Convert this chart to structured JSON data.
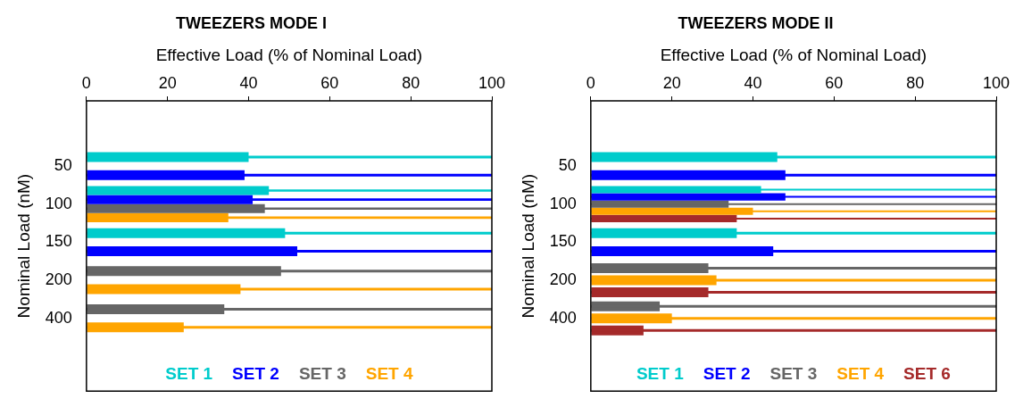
{
  "chart_data": [
    {
      "type": "bar",
      "orientation": "horizontal",
      "title": "TWEEZERS MODE I",
      "xlabel": "Effective Load (% of Nominal Load)",
      "ylabel": "Nominal Load (nM)",
      "categories": [
        "50",
        "100",
        "150",
        "200",
        "400"
      ],
      "xlim": [
        0,
        100
      ],
      "xticks": [
        0,
        20,
        40,
        60,
        80,
        100
      ],
      "grid": false,
      "legend": "bottom",
      "series": [
        {
          "name": "SET 1",
          "color": "#00cccc",
          "values": [
            40,
            45,
            49,
            null,
            null
          ]
        },
        {
          "color": "#00cccc",
          "values": [
            100,
            100,
            100,
            null,
            null
          ]
        },
        {
          "name": "SET 2",
          "color": "#0000ff",
          "values": [
            39,
            41,
            52,
            null,
            null
          ]
        },
        {
          "color": "#0000ff",
          "values": [
            100,
            100,
            100,
            null,
            null
          ]
        },
        {
          "name": "SET 3",
          "color": "#666666",
          "values": [
            null,
            44,
            null,
            48,
            34
          ]
        },
        {
          "color": "#666666",
          "values": [
            null,
            100,
            null,
            100,
            100
          ]
        },
        {
          "name": "SET 4",
          "color": "#ffa500",
          "values": [
            null,
            35,
            null,
            38,
            24
          ]
        },
        {
          "color": "#ffa500",
          "values": [
            null,
            100,
            null,
            100,
            100
          ]
        }
      ]
    },
    {
      "type": "bar",
      "orientation": "horizontal",
      "title": "TWEEZERS MODE II",
      "xlabel": "Effective Load (% of Nominal Load)",
      "ylabel": "Nominal Load (nM)",
      "categories": [
        "50",
        "100",
        "150",
        "200",
        "400"
      ],
      "xlim": [
        0,
        100
      ],
      "xticks": [
        0,
        20,
        40,
        60,
        80,
        100
      ],
      "grid": false,
      "legend": "bottom",
      "series": [
        {
          "name": "SET 1",
          "color": "#00cccc",
          "values": [
            46,
            42,
            36,
            null,
            null
          ]
        },
        {
          "color": "#00cccc",
          "values": [
            100,
            100,
            100,
            null,
            null
          ]
        },
        {
          "name": "SET 2",
          "color": "#0000ff",
          "values": [
            48,
            48,
            45,
            null,
            null
          ]
        },
        {
          "color": "#0000ff",
          "values": [
            100,
            100,
            100,
            null,
            null
          ]
        },
        {
          "name": "SET 3",
          "color": "#666666",
          "values": [
            null,
            34,
            null,
            29,
            17
          ]
        },
        {
          "color": "#666666",
          "values": [
            null,
            100,
            null,
            100,
            100
          ]
        },
        {
          "name": "SET 4",
          "color": "#ffa500",
          "values": [
            null,
            40,
            null,
            31,
            20
          ]
        },
        {
          "color": "#ffa500",
          "values": [
            null,
            100,
            null,
            100,
            100
          ]
        },
        {
          "name": "SET 6",
          "color": "#a52a2a",
          "values": [
            null,
            36,
            null,
            29,
            13
          ]
        },
        {
          "color": "#a52a2a",
          "values": [
            null,
            100,
            null,
            100,
            100
          ]
        }
      ]
    }
  ]
}
